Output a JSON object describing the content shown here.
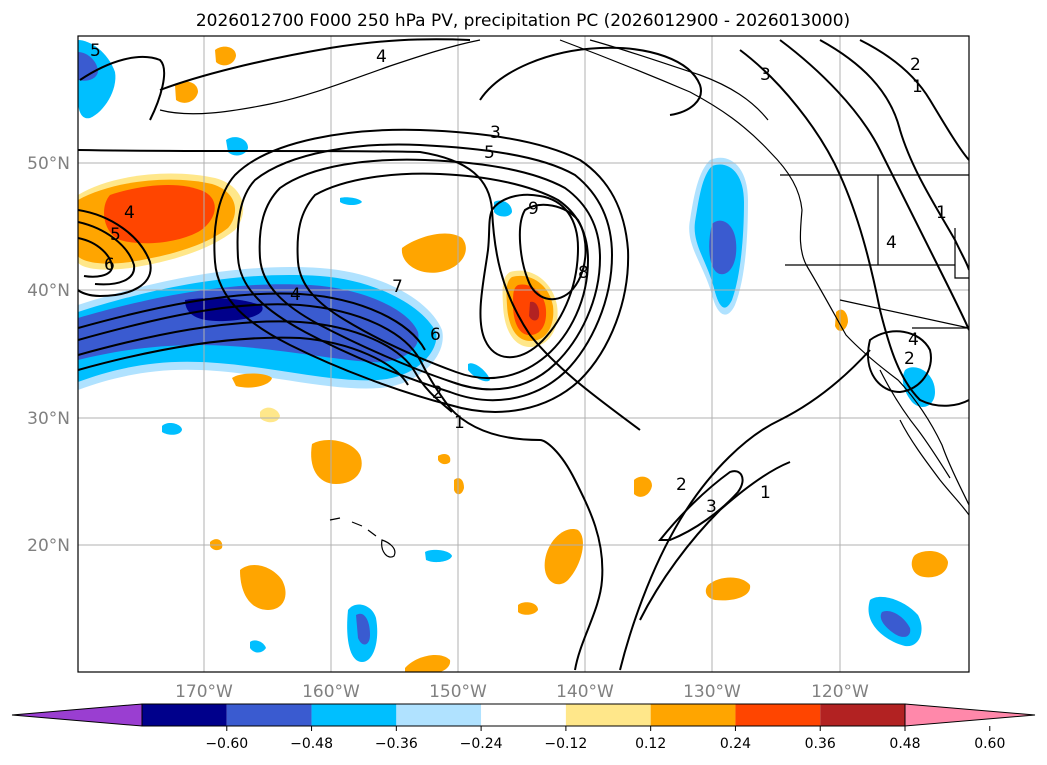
{
  "title": "2026012700 F000 250 hPa PV, precipitation PC (2026012900 - 2026013000)",
  "lat_labels": [
    "50°N",
    "40°N",
    "30°N",
    "20°N"
  ],
  "lon_labels": [
    "170°W",
    "160°W",
    "150°W",
    "140°W",
    "130°W",
    "120°W"
  ],
  "colorbar": {
    "ticks": [
      "−0.60",
      "−0.48",
      "−0.36",
      "−0.24",
      "−0.12",
      "0.12",
      "0.24",
      "0.36",
      "0.48",
      "0.60"
    ],
    "colors": [
      "#9a3ed1",
      "#00008b",
      "#3a5bd0",
      "#00bfff",
      "#b0e2ff",
      "#ffffff",
      "#ffe78a",
      "#ffa500",
      "#ff4500",
      "#b22222",
      "#ff88aa"
    ]
  },
  "pv_contour_labels": [
    "5",
    "4",
    "3",
    "5",
    "9",
    "8",
    "7",
    "4",
    "6",
    "5",
    "4",
    "2",
    "1",
    "2",
    "3",
    "1",
    "3",
    "2",
    "1",
    "1",
    "4",
    "4",
    "2",
    "6"
  ],
  "colors": {
    "text": "#000000",
    "axis_labels": "#808080",
    "grid": "#b0b0b0"
  }
}
